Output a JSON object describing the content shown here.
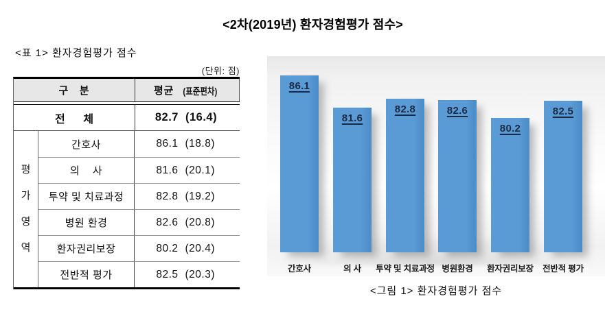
{
  "page_title": "<2차(2019년) 환자경험평가 점수>",
  "table": {
    "caption": "<표 1> 환자경험평가 점수",
    "unit_note": "(단위: 점)",
    "header": {
      "col_category": "구   분",
      "col_mean": "평균",
      "col_sd": "(표준편차)"
    },
    "total_row": {
      "label": "전      체",
      "mean": "82.7",
      "sd": "(16.4)"
    },
    "group_label_chars": [
      "평",
      "가",
      "영",
      "역"
    ],
    "rows": [
      {
        "label": "간호사",
        "mean": "86.1",
        "sd": "(18.8)"
      },
      {
        "label": "의    사",
        "mean": "81.6",
        "sd": "(20.1)"
      },
      {
        "label": "투약 및 치료과정",
        "mean": "82.8",
        "sd": "(19.2)"
      },
      {
        "label": "병원 환경",
        "mean": "82.6",
        "sd": "(20.8)"
      },
      {
        "label": "환자권리보장",
        "mean": "80.2",
        "sd": "(20.4)"
      },
      {
        "label": "전반적 평가",
        "mean": "82.5",
        "sd": "(20.3)"
      }
    ]
  },
  "chart": {
    "caption": "<그림 1> 환자경험평가 점수",
    "bar_color": "#5b9bd5",
    "bar_color_dark": "#4a8cc7",
    "value_label_color": "#1b2a44",
    "background_top": "#e8e8e8",
    "background_bottom": "#f9f9f9"
  },
  "chart_data": {
    "type": "bar",
    "categories": [
      "간호사",
      "의 사",
      "투약 및 치료과정",
      "병원환경",
      "환자권리보장",
      "전반적 평가"
    ],
    "values": [
      86.1,
      81.6,
      82.8,
      82.6,
      80.2,
      82.5
    ],
    "data_labels": [
      "86.1",
      "81.6",
      "82.8",
      "82.6",
      "80.2",
      "82.5"
    ],
    "title": "<그림 1> 환자경험평가 점수",
    "xlabel": "",
    "ylabel": "",
    "ylim": [
      60,
      90
    ],
    "grid": false,
    "legend": false,
    "axes_hidden": true
  }
}
